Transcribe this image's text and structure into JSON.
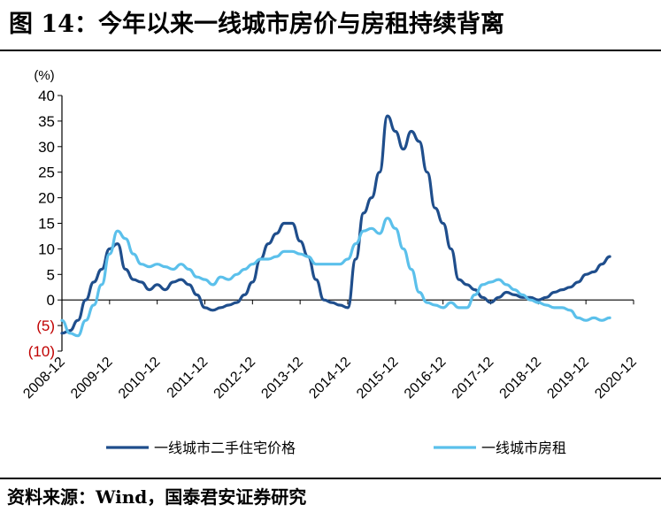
{
  "figure": {
    "title": "图 14：今年以来一线城市房价与房租持续背离",
    "source": "资料来源：Wind，国泰君安证券研究"
  },
  "chart_data": {
    "type": "line",
    "unit_label": "(%)",
    "ylim": [
      -10,
      40
    ],
    "yticks": [
      {
        "value": 40,
        "label": "40"
      },
      {
        "value": 35,
        "label": "35"
      },
      {
        "value": 30,
        "label": "30"
      },
      {
        "value": 25,
        "label": "25"
      },
      {
        "value": 20,
        "label": "20"
      },
      {
        "value": 15,
        "label": "15"
      },
      {
        "value": 10,
        "label": "10"
      },
      {
        "value": 5,
        "label": "5"
      },
      {
        "value": 0,
        "label": "0"
      },
      {
        "value": -5,
        "label": "(5)"
      },
      {
        "value": -10,
        "label": "(10)"
      }
    ],
    "xlim": [
      "2008-12",
      "2020-12"
    ],
    "xtick_labels": [
      "2008-12",
      "2009-12",
      "2010-12",
      "2011-12",
      "2012-12",
      "2013-12",
      "2014-12",
      "2015-12",
      "2016-12",
      "2017-12",
      "2018-12",
      "2019-12",
      "2020-12"
    ],
    "grid": false,
    "legend_position": "bottom",
    "series": [
      {
        "name": "一线城市二手住宅价格",
        "color": "#1f4e8c",
        "points": [
          [
            "2008-12",
            -6.5
          ],
          [
            "2009-02",
            -6
          ],
          [
            "2009-04",
            -4
          ],
          [
            "2009-06",
            0
          ],
          [
            "2009-08",
            3.5
          ],
          [
            "2009-10",
            6
          ],
          [
            "2009-12",
            10
          ],
          [
            "2010-02",
            11
          ],
          [
            "2010-04",
            6
          ],
          [
            "2010-06",
            4
          ],
          [
            "2010-08",
            3.5
          ],
          [
            "2010-10",
            2
          ],
          [
            "2010-12",
            3
          ],
          [
            "2011-02",
            2
          ],
          [
            "2011-04",
            3.5
          ],
          [
            "2011-06",
            4
          ],
          [
            "2011-08",
            3
          ],
          [
            "2011-10",
            1
          ],
          [
            "2011-12",
            -1.5
          ],
          [
            "2012-02",
            -2
          ],
          [
            "2012-04",
            -1.5
          ],
          [
            "2012-06",
            -1
          ],
          [
            "2012-08",
            -0.5
          ],
          [
            "2012-10",
            1
          ],
          [
            "2012-12",
            3.5
          ],
          [
            "2013-02",
            8
          ],
          [
            "2013-04",
            11
          ],
          [
            "2013-06",
            13
          ],
          [
            "2013-08",
            15
          ],
          [
            "2013-10",
            15
          ],
          [
            "2013-12",
            11.5
          ],
          [
            "2014-02",
            8.5
          ],
          [
            "2014-04",
            4
          ],
          [
            "2014-06",
            0
          ],
          [
            "2014-08",
            -0.5
          ],
          [
            "2014-10",
            -1
          ],
          [
            "2014-12",
            -1.5
          ],
          [
            "2015-02",
            8
          ],
          [
            "2015-04",
            17
          ],
          [
            "2015-06",
            20
          ],
          [
            "2015-08",
            25
          ],
          [
            "2015-10",
            36
          ],
          [
            "2015-12",
            33
          ],
          [
            "2016-02",
            29.5
          ],
          [
            "2016-04",
            33
          ],
          [
            "2016-06",
            31
          ],
          [
            "2016-08",
            25
          ],
          [
            "2016-10",
            18
          ],
          [
            "2016-12",
            15
          ],
          [
            "2017-02",
            10
          ],
          [
            "2017-04",
            4
          ],
          [
            "2017-06",
            3
          ],
          [
            "2017-08",
            2
          ],
          [
            "2017-10",
            0.5
          ],
          [
            "2017-12",
            -0.5
          ],
          [
            "2018-02",
            0.5
          ],
          [
            "2018-04",
            1.5
          ],
          [
            "2018-06",
            1
          ],
          [
            "2018-08",
            0.5
          ],
          [
            "2018-10",
            0.5
          ],
          [
            "2018-12",
            0
          ],
          [
            "2019-02",
            0.5
          ],
          [
            "2019-04",
            1.5
          ],
          [
            "2019-06",
            2
          ],
          [
            "2019-08",
            2.5
          ],
          [
            "2019-10",
            3.5
          ],
          [
            "2019-12",
            5
          ],
          [
            "2020-02",
            5.5
          ],
          [
            "2020-04",
            7
          ],
          [
            "2020-06",
            8.5
          ]
        ]
      },
      {
        "name": "一线城市房租",
        "color": "#5bc0eb",
        "points": [
          [
            "2008-12",
            -4
          ],
          [
            "2009-02",
            -6.5
          ],
          [
            "2009-04",
            -7
          ],
          [
            "2009-06",
            -4
          ],
          [
            "2009-08",
            -1
          ],
          [
            "2009-10",
            3
          ],
          [
            "2009-12",
            9
          ],
          [
            "2010-02",
            13.5
          ],
          [
            "2010-04",
            12
          ],
          [
            "2010-06",
            9
          ],
          [
            "2010-08",
            7
          ],
          [
            "2010-10",
            6.5
          ],
          [
            "2010-12",
            7
          ],
          [
            "2011-02",
            6.5
          ],
          [
            "2011-04",
            6
          ],
          [
            "2011-06",
            7
          ],
          [
            "2011-08",
            6
          ],
          [
            "2011-10",
            4.5
          ],
          [
            "2011-12",
            4
          ],
          [
            "2012-02",
            3
          ],
          [
            "2012-04",
            4.5
          ],
          [
            "2012-06",
            4
          ],
          [
            "2012-08",
            5
          ],
          [
            "2012-10",
            6
          ],
          [
            "2012-12",
            7
          ],
          [
            "2013-02",
            8
          ],
          [
            "2013-04",
            8
          ],
          [
            "2013-06",
            8.5
          ],
          [
            "2013-08",
            9.5
          ],
          [
            "2013-10",
            9.5
          ],
          [
            "2013-12",
            9
          ],
          [
            "2014-02",
            8.5
          ],
          [
            "2014-04",
            7
          ],
          [
            "2014-06",
            7
          ],
          [
            "2014-08",
            7
          ],
          [
            "2014-10",
            7
          ],
          [
            "2014-12",
            8
          ],
          [
            "2015-02",
            11
          ],
          [
            "2015-04",
            13.5
          ],
          [
            "2015-06",
            14
          ],
          [
            "2015-08",
            13
          ],
          [
            "2015-10",
            16
          ],
          [
            "2015-12",
            14
          ],
          [
            "2016-02",
            10
          ],
          [
            "2016-04",
            6
          ],
          [
            "2016-06",
            1.5
          ],
          [
            "2016-08",
            -0.5
          ],
          [
            "2016-10",
            -1
          ],
          [
            "2016-12",
            -1.5
          ],
          [
            "2017-02",
            -0.5
          ],
          [
            "2017-04",
            -1.5
          ],
          [
            "2017-06",
            -1.5
          ],
          [
            "2017-08",
            1
          ],
          [
            "2017-10",
            3
          ],
          [
            "2017-12",
            3.5
          ],
          [
            "2018-02",
            4
          ],
          [
            "2018-04",
            3
          ],
          [
            "2018-06",
            2
          ],
          [
            "2018-08",
            1
          ],
          [
            "2018-10",
            0
          ],
          [
            "2018-12",
            -0.5
          ],
          [
            "2019-02",
            -1
          ],
          [
            "2019-04",
            -1.5
          ],
          [
            "2019-06",
            -1.5
          ],
          [
            "2019-08",
            -2
          ],
          [
            "2019-10",
            -3.5
          ],
          [
            "2019-12",
            -4
          ],
          [
            "2020-02",
            -3.5
          ],
          [
            "2020-04",
            -4
          ],
          [
            "2020-06",
            -3.5
          ]
        ]
      }
    ]
  }
}
